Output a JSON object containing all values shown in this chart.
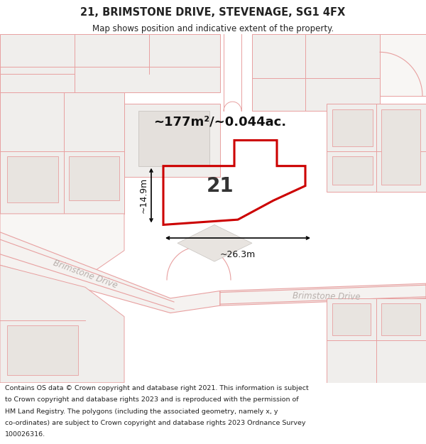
{
  "title": "21, BRIMSTONE DRIVE, STEVENAGE, SG1 4FX",
  "subtitle": "Map shows position and indicative extent of the property.",
  "area_label": "~177m²/~0.044ac.",
  "width_label": "~26.3m",
  "height_label": "~14.9m",
  "plot_number": "21",
  "plot_color": "#cc0000",
  "outline_color": "#e8a0a0",
  "road_label_color": "#b8b0ac",
  "text_color": "#222222",
  "map_bg": "#ffffff",
  "block_fill": "#f0eeec",
  "footer_lines": [
    "Contains OS data © Crown copyright and database right 2021. This information is subject",
    "to Crown copyright and database rights 2023 and is reproduced with the permission of",
    "HM Land Registry. The polygons (including the associated geometry, namely x, y",
    "co-ordinates) are subject to Crown copyright and database rights 2023 Ordnance Survey",
    "100026316."
  ],
  "figsize": [
    6.0,
    6.25
  ],
  "dpi": 100
}
